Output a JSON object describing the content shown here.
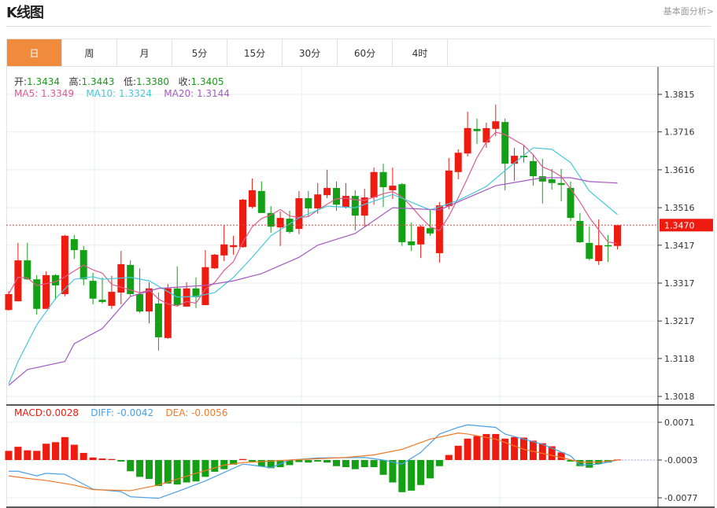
{
  "header": {
    "title": "K线图",
    "link": "基本面分析>"
  },
  "tabs": [
    {
      "label": "日",
      "active": true
    },
    {
      "label": "周"
    },
    {
      "label": "月"
    },
    {
      "label": "5分"
    },
    {
      "label": "15分"
    },
    {
      "label": "30分"
    },
    {
      "label": "60分"
    },
    {
      "label": "4时"
    }
  ],
  "ohlc": {
    "open_label": "开:",
    "open": "1.3434",
    "high_label": "高:",
    "high": "1.3443",
    "low_label": "低:",
    "low": "1.3380",
    "close_label": "收:",
    "close": "1.3405"
  },
  "ma": {
    "ma5": "MA5: 1.3349",
    "ma10": "MA10: 1.3324",
    "ma20": "MA20: 1.3144"
  },
  "macd_info": {
    "macd": "MACD:0.0028",
    "diff": "DIFF: -0.0042",
    "dea": "DEA: -0.0056"
  },
  "colors": {
    "up": "#ee1c10",
    "down": "#14a014",
    "ma5": "#e05a8e",
    "ma10": "#46c8dc",
    "ma20": "#a45ac0",
    "diff": "#4aa0e6",
    "dea": "#f07a28",
    "accent": "#f08a3c"
  },
  "chart_data": [
    {
      "type": "candlestick",
      "title": "",
      "yticks": [
        "1.3815",
        "1.3716",
        "1.3616",
        "1.3516",
        "1.3417",
        "1.3317",
        "1.3217",
        "1.3118",
        "1.3018"
      ],
      "ylim": [
        1.3018,
        1.3815
      ],
      "current_price": "1.3470",
      "candles_ohlc": [
        [
          1.3246,
          1.3296,
          1.3244,
          1.3288
        ],
        [
          1.3269,
          1.3423,
          1.3269,
          1.3377
        ],
        [
          1.3377,
          1.3423,
          1.3325,
          1.3327
        ],
        [
          1.3327,
          1.3338,
          1.3234,
          1.3249
        ],
        [
          1.3249,
          1.3348,
          1.3249,
          1.3338
        ],
        [
          1.3338,
          1.334,
          1.3273,
          1.3311
        ],
        [
          1.3288,
          1.3444,
          1.3282,
          1.3442
        ],
        [
          1.3433,
          1.3444,
          1.3381,
          1.3404
        ],
        [
          1.3404,
          1.3415,
          1.3311,
          1.3327
        ],
        [
          1.3323,
          1.3344,
          1.3261,
          1.3276
        ],
        [
          1.3273,
          1.3332,
          1.3263,
          1.3267
        ],
        [
          1.3257,
          1.3336,
          1.3249,
          1.3294
        ],
        [
          1.3292,
          1.3402,
          1.3261,
          1.3367
        ],
        [
          1.3365,
          1.3377,
          1.3282,
          1.3288
        ],
        [
          1.3288,
          1.3356,
          1.3238,
          1.3242
        ],
        [
          1.3242,
          1.3319,
          1.3211,
          1.3303
        ],
        [
          1.3263,
          1.3292,
          1.3139,
          1.3174
        ],
        [
          1.3172,
          1.3315,
          1.317,
          1.3303
        ],
        [
          1.3303,
          1.3361,
          1.3255,
          1.3259
        ],
        [
          1.3255,
          1.3319,
          1.3255,
          1.3303
        ],
        [
          1.3303,
          1.3332,
          1.3251,
          1.328
        ],
        [
          1.3259,
          1.3404,
          1.3259,
          1.3359
        ],
        [
          1.3356,
          1.3394,
          1.3354,
          1.3392
        ],
        [
          1.339,
          1.3469,
          1.3375,
          1.3419
        ],
        [
          1.3412,
          1.3442,
          1.3392,
          1.3417
        ],
        [
          1.3412,
          1.3539,
          1.341,
          1.3537
        ],
        [
          1.3518,
          1.3593,
          1.3514,
          1.3562
        ],
        [
          1.356,
          1.3585,
          1.3502,
          1.3502
        ],
        [
          1.3502,
          1.352,
          1.345,
          1.3466
        ],
        [
          1.3464,
          1.3506,
          1.3415,
          1.3489
        ],
        [
          1.3487,
          1.3508,
          1.3448,
          1.3452
        ],
        [
          1.346,
          1.356,
          1.3446,
          1.3541
        ],
        [
          1.3541,
          1.356,
          1.3493,
          1.3514
        ],
        [
          1.3514,
          1.3581,
          1.35,
          1.3551
        ],
        [
          1.3549,
          1.3616,
          1.3541,
          1.3568
        ],
        [
          1.3568,
          1.3585,
          1.3508,
          1.3524
        ],
        [
          1.3518,
          1.3581,
          1.3514,
          1.3547
        ],
        [
          1.3547,
          1.3562,
          1.3456,
          1.3495
        ],
        [
          1.3495,
          1.3566,
          1.3466,
          1.3543
        ],
        [
          1.3543,
          1.3622,
          1.3524,
          1.361
        ],
        [
          1.361,
          1.3632,
          1.3518,
          1.357
        ],
        [
          1.3562,
          1.3622,
          1.3539,
          1.3574
        ],
        [
          1.3578,
          1.3581,
          1.3415,
          1.3425
        ],
        [
          1.3427,
          1.3477,
          1.3402,
          1.3417
        ],
        [
          1.3419,
          1.347,
          1.3383,
          1.3466
        ],
        [
          1.3462,
          1.351,
          1.3442,
          1.3448
        ],
        [
          1.3396,
          1.3531,
          1.3371,
          1.3522
        ],
        [
          1.352,
          1.3647,
          1.3512,
          1.3614
        ],
        [
          1.361,
          1.367,
          1.3591,
          1.3661
        ],
        [
          1.3659,
          1.3769,
          1.3651,
          1.3726
        ],
        [
          1.3724,
          1.3751,
          1.3684,
          1.3718
        ],
        [
          1.3688,
          1.374,
          1.3674,
          1.3726
        ],
        [
          1.3724,
          1.3788,
          1.3705,
          1.3744
        ],
        [
          1.3742,
          1.3751,
          1.3562,
          1.3632
        ],
        [
          1.3632,
          1.3674,
          1.3587,
          1.3653
        ],
        [
          1.3653,
          1.368,
          1.3635,
          1.3649
        ],
        [
          1.3639,
          1.3655,
          1.3574,
          1.3599
        ],
        [
          1.3599,
          1.3645,
          1.3527,
          1.3585
        ],
        [
          1.3591,
          1.3618,
          1.3564,
          1.3581
        ],
        [
          1.3581,
          1.3618,
          1.3533,
          1.3576
        ],
        [
          1.3568,
          1.3585,
          1.3481,
          1.3489
        ],
        [
          1.3481,
          1.3502,
          1.3423,
          1.3425
        ],
        [
          1.3423,
          1.3466,
          1.3377,
          1.3381
        ],
        [
          1.3375,
          1.3485,
          1.3365,
          1.3417
        ],
        [
          1.3417,
          1.3444,
          1.3373,
          1.3415
        ],
        [
          1.3415,
          1.347,
          1.3406,
          1.347
        ]
      ],
      "ma10": [
        [
          0,
          1.3051
        ],
        [
          1,
          1.311
        ],
        [
          3,
          1.3207
        ],
        [
          5,
          1.3276
        ],
        [
          7,
          1.3327
        ],
        [
          9,
          1.3334
        ],
        [
          10,
          1.3327
        ],
        [
          13,
          1.3332
        ],
        [
          15,
          1.3323
        ],
        [
          18,
          1.328
        ],
        [
          20,
          1.3282
        ],
        [
          22,
          1.3292
        ],
        [
          24,
          1.3332
        ],
        [
          26,
          1.3385
        ],
        [
          28,
          1.3442
        ],
        [
          31,
          1.3489
        ],
        [
          34,
          1.352
        ],
        [
          37,
          1.3516
        ],
        [
          41,
          1.3551
        ],
        [
          45,
          1.351
        ],
        [
          48,
          1.3535
        ],
        [
          51,
          1.3572
        ],
        [
          53,
          1.3614
        ],
        [
          56,
          1.3674
        ],
        [
          58,
          1.367
        ],
        [
          60,
          1.3635
        ],
        [
          62,
          1.356
        ],
        [
          65,
          1.3498
        ]
      ],
      "ma20": [
        [
          0,
          1.3047
        ],
        [
          2,
          1.3089
        ],
        [
          6,
          1.311
        ],
        [
          7,
          1.3157
        ],
        [
          10,
          1.3197
        ],
        [
          13,
          1.3282
        ],
        [
          16,
          1.3303
        ],
        [
          21,
          1.3311
        ],
        [
          24,
          1.3323
        ],
        [
          27,
          1.3342
        ],
        [
          31,
          1.3385
        ],
        [
          33,
          1.3417
        ],
        [
          37,
          1.3448
        ],
        [
          41,
          1.3516
        ],
        [
          46,
          1.351
        ],
        [
          52,
          1.3574
        ],
        [
          57,
          1.3595
        ],
        [
          60,
          1.3595
        ],
        [
          62,
          1.3585
        ],
        [
          65,
          1.3581
        ]
      ]
    },
    {
      "type": "bar",
      "title": "",
      "yticks": [
        "0.0071",
        "-0.0003",
        "-0.0077"
      ],
      "ylim": [
        -0.0077,
        0.0071
      ],
      "macd": [
        0.0018,
        0.0026,
        0.0019,
        0.0018,
        0.0032,
        0.0035,
        0.0045,
        0.003,
        0.0014,
        0.0005,
        0.0003,
        0.0002,
        -0.0003,
        -0.0022,
        -0.0033,
        -0.0037,
        -0.0051,
        -0.0046,
        -0.0048,
        -0.0044,
        -0.0042,
        -0.0033,
        -0.0023,
        -0.0018,
        -0.0009,
        0.0002,
        -0.0003,
        -0.0013,
        -0.0016,
        -0.0014,
        -0.001,
        -0.0004,
        -0.0005,
        -0.0003,
        -0.0005,
        -0.0012,
        -0.0014,
        -0.0018,
        -0.0014,
        -0.0014,
        -0.0029,
        -0.0044,
        -0.0063,
        -0.006,
        -0.0049,
        -0.0036,
        -0.0012,
        0.001,
        0.0028,
        0.0042,
        0.0047,
        0.0051,
        0.0051,
        0.0042,
        0.0045,
        0.0044,
        0.0038,
        0.0033,
        0.0027,
        0.0015,
        -0.0003,
        -0.0012,
        -0.0015,
        -0.0008,
        -0.0005,
        0.0001
      ],
      "diff": [
        [
          0,
          -0.0025
        ],
        [
          1,
          -0.0025
        ],
        [
          3,
          -0.0034
        ],
        [
          4,
          -0.0029
        ],
        [
          6,
          -0.0031
        ],
        [
          9,
          -0.006
        ],
        [
          12,
          -0.0065
        ],
        [
          13,
          -0.0075
        ],
        [
          16,
          -0.0078
        ],
        [
          18,
          -0.0065
        ],
        [
          21,
          -0.0044
        ],
        [
          25,
          -0.0011
        ],
        [
          26,
          -0.0013
        ],
        [
          28,
          -0.0018
        ],
        [
          30,
          -0.0003
        ],
        [
          33,
          0.0001
        ],
        [
          38,
          0.0002
        ],
        [
          40,
          -0.0003
        ],
        [
          42,
          -0.0011
        ],
        [
          44,
          0.0012
        ],
        [
          46,
          0.0048
        ],
        [
          48,
          0.0061
        ],
        [
          49,
          0.0066
        ],
        [
          52,
          0.0061
        ],
        [
          53,
          0.0048
        ],
        [
          57,
          0.0028
        ],
        [
          60,
          0.0005
        ],
        [
          61,
          -0.0013
        ],
        [
          63,
          -0.0011
        ],
        [
          65,
          -0.0003
        ]
      ],
      "dea": [
        [
          0,
          -0.0034
        ],
        [
          2,
          -0.0039
        ],
        [
          4,
          -0.0043
        ],
        [
          7,
          -0.0052
        ],
        [
          9,
          -0.0061
        ],
        [
          13,
          -0.0063
        ],
        [
          16,
          -0.0052
        ],
        [
          20,
          -0.0029
        ],
        [
          23,
          -0.0013
        ],
        [
          25,
          -0.0008
        ],
        [
          30,
          -0.0003
        ],
        [
          36,
          0.0002
        ],
        [
          39,
          0.0007
        ],
        [
          42,
          0.0018
        ],
        [
          45,
          0.0038
        ],
        [
          48,
          0.005
        ],
        [
          49,
          0.0048
        ],
        [
          52,
          0.0038
        ],
        [
          55,
          0.0018
        ],
        [
          59,
          0.0002
        ],
        [
          61,
          -0.0007
        ],
        [
          63,
          -0.0007
        ],
        [
          65,
          -0.0003
        ]
      ]
    }
  ]
}
